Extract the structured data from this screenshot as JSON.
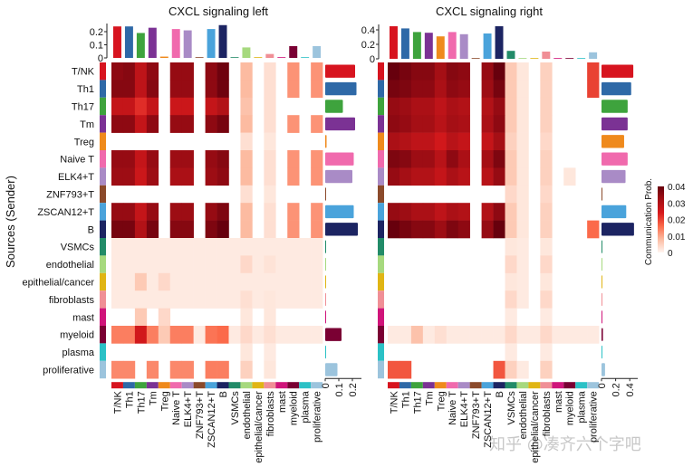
{
  "chart_data": [
    {
      "type": "heatmap",
      "title": "CXCL signaling  left",
      "ylabel": "Sources (Sender)",
      "rows": [
        "T/NK",
        "Th1",
        "Th17",
        "Tm",
        "Treg",
        "Naive T",
        "ELK4+T",
        "ZNF793+T",
        "ZSCAN12+T",
        "B",
        "VSMCs",
        "endothelial",
        "epithelial/cancer",
        "fibroblasts",
        "mast",
        "myeloid",
        "plasma",
        "proliferative"
      ],
      "columns": [
        "T/NK",
        "Th1",
        "Th17",
        "Tm",
        "Treg",
        "Naive T",
        "ELK4+T",
        "ZNF793+T",
        "ZSCAN12+T",
        "B",
        "VSMCs",
        "endothelial",
        "epithelial/cancer",
        "fibroblasts",
        "mast",
        "myeloid",
        "plasma",
        "proliferative"
      ],
      "matrix": [
        [
          0.035,
          0.036,
          0.028,
          0.035,
          0,
          0.034,
          0.034,
          0,
          0.035,
          0.039,
          0,
          0.008,
          0,
          0.003,
          0,
          0.012,
          0,
          0.012
        ],
        [
          0.036,
          0.036,
          0.028,
          0.036,
          0,
          0.034,
          0.034,
          0,
          0.035,
          0.039,
          0,
          0.008,
          0,
          0.003,
          0,
          0.012,
          0,
          0.012
        ],
        [
          0.027,
          0.027,
          0.022,
          0.027,
          0,
          0.026,
          0.026,
          0,
          0.027,
          0.03,
          0,
          0.007,
          0,
          0.003,
          0,
          0,
          0,
          0
        ],
        [
          0.035,
          0.035,
          0.027,
          0.035,
          0,
          0.034,
          0.034,
          0,
          0.035,
          0.038,
          0,
          0.008,
          0,
          0.003,
          0,
          0.012,
          0,
          0.012
        ],
        [
          0,
          0,
          0,
          0,
          0,
          0,
          0,
          0,
          0,
          0,
          0,
          0.003,
          0,
          0.002,
          0,
          0,
          0,
          0
        ],
        [
          0.034,
          0.034,
          0.027,
          0.034,
          0,
          0.033,
          0.033,
          0,
          0.034,
          0.036,
          0,
          0.008,
          0,
          0.003,
          0,
          0.012,
          0,
          0.012
        ],
        [
          0.033,
          0.033,
          0.026,
          0.033,
          0,
          0.031,
          0.031,
          0,
          0.033,
          0.035,
          0,
          0.008,
          0,
          0.003,
          0,
          0.012,
          0,
          0.012
        ],
        [
          0,
          0,
          0,
          0,
          0,
          0,
          0,
          0,
          0,
          0,
          0,
          0.003,
          0,
          0.002,
          0,
          0,
          0,
          0
        ],
        [
          0.034,
          0.034,
          0.027,
          0.034,
          0,
          0.033,
          0.033,
          0,
          0.034,
          0.037,
          0,
          0.008,
          0,
          0.003,
          0,
          0.012,
          0,
          0.012
        ],
        [
          0.038,
          0.038,
          0.03,
          0.038,
          0,
          0.036,
          0.036,
          0,
          0.037,
          0.04,
          0,
          0.008,
          0,
          0.003,
          0,
          0.012,
          0,
          0.012
        ],
        [
          0.0015,
          0.0015,
          0.0015,
          0.0015,
          0.0015,
          0.0015,
          0.0015,
          0.0015,
          0.0015,
          0.0015,
          0.0015,
          0.0015,
          0.0015,
          0.0015,
          0.0015,
          0.0015,
          0.0015,
          0.0015
        ],
        [
          0.0015,
          0.0015,
          0.0015,
          0.0015,
          0.0015,
          0.0015,
          0.0015,
          0.0015,
          0.0015,
          0.0015,
          0.0015,
          0.004,
          0.0015,
          0.0025,
          0.0015,
          0.0015,
          0.0015,
          0.0015
        ],
        [
          0.0015,
          0.0015,
          0.006,
          0.0015,
          0.004,
          0.0015,
          0.0015,
          0.0015,
          0.0015,
          0.0015,
          0.0015,
          0.0015,
          0.0015,
          0.0015,
          0.0015,
          0.0015,
          0.0015,
          0.0015
        ],
        [
          0.0015,
          0.0015,
          0.0015,
          0.0015,
          0.0015,
          0.0015,
          0.0015,
          0.0015,
          0.0015,
          0.0015,
          0.0015,
          0.003,
          0.0015,
          0.002,
          0.0015,
          0.0015,
          0.0015,
          0.0015
        ],
        [
          0,
          0,
          0.006,
          0,
          0.004,
          0,
          0,
          0,
          0,
          0,
          0,
          0.002,
          0,
          0.002,
          0,
          0,
          0,
          0
        ],
        [
          0.014,
          0.014,
          0.025,
          0.014,
          0.006,
          0.014,
          0.014,
          0.0015,
          0.015,
          0.016,
          0.0015,
          0.004,
          0.0015,
          0.003,
          0.0015,
          0.0015,
          0.0015,
          0.0015
        ],
        [
          0,
          0,
          0,
          0,
          0,
          0,
          0,
          0,
          0,
          0,
          0,
          0.002,
          0,
          0.0015,
          0,
          0,
          0,
          0
        ],
        [
          0.013,
          0.013,
          0,
          0.013,
          0,
          0.013,
          0.013,
          0,
          0.014,
          0.014,
          0,
          0.005,
          0,
          0.002,
          0,
          0,
          0,
          0
        ]
      ],
      "incoming_totals": [
        0.24,
        0.24,
        0.19,
        0.23,
        0.01,
        0.22,
        0.21,
        0.004,
        0.22,
        0.25,
        0.004,
        0.08,
        0.004,
        0.03,
        0.004,
        0.09,
        0.004,
        0.09
      ],
      "incoming_axis_ticks": [
        "0",
        "0.1",
        "0.2"
      ],
      "incoming_axis_max": 0.25,
      "outgoing_totals": [
        0.22,
        0.23,
        0.13,
        0.22,
        0.01,
        0.21,
        0.2,
        0.005,
        0.21,
        0.24,
        0.005,
        0.005,
        0.005,
        0.005,
        0.005,
        0.12,
        0.005,
        0.09
      ],
      "outgoing_axis_ticks": [
        "0",
        "0.1",
        "0.2"
      ],
      "outgoing_axis_max": 0.25
    },
    {
      "type": "heatmap",
      "title": "CXCL signaling  right",
      "rows": [
        "T/NK",
        "Th1",
        "Th17",
        "Tm",
        "Treg",
        "Naive T",
        "ELK4+T",
        "ZNF793+T",
        "ZSCAN12+T",
        "B",
        "VSMCs",
        "endothelial",
        "epithelial/cancer",
        "fibroblasts",
        "mast",
        "myeloid",
        "plasma",
        "proliferative"
      ],
      "columns": [
        "T/NK",
        "Th1",
        "Th17",
        "Tm",
        "Treg",
        "Naive T",
        "ELK4+T",
        "ZNF793+T",
        "ZSCAN12+T",
        "B",
        "VSMCs",
        "endothelial",
        "epithelial/cancer",
        "fibroblasts",
        "mast",
        "myeloid",
        "plasma",
        "proliferative"
      ],
      "matrix": [
        [
          0.04,
          0.038,
          0.036,
          0.036,
          0.032,
          0.036,
          0.035,
          0,
          0.034,
          0.04,
          0.006,
          0.002,
          0,
          0.005,
          0,
          0,
          0,
          0.02
        ],
        [
          0.038,
          0.037,
          0.035,
          0.035,
          0.031,
          0.035,
          0.034,
          0,
          0.033,
          0.038,
          0.006,
          0.002,
          0,
          0.005,
          0,
          0,
          0,
          0.02
        ],
        [
          0.034,
          0.033,
          0.031,
          0.031,
          0.028,
          0.031,
          0.03,
          0,
          0.03,
          0.034,
          0.006,
          0.002,
          0,
          0.005,
          0,
          0,
          0,
          0
        ],
        [
          0.035,
          0.034,
          0.032,
          0.032,
          0.029,
          0.032,
          0.031,
          0,
          0.031,
          0.035,
          0.006,
          0.002,
          0,
          0.005,
          0,
          0,
          0,
          0
        ],
        [
          0.031,
          0.03,
          0.028,
          0.028,
          0.025,
          0.029,
          0.027,
          0,
          0.027,
          0.032,
          0.005,
          0.002,
          0,
          0.004,
          0,
          0,
          0,
          0
        ],
        [
          0.037,
          0.036,
          0.033,
          0.033,
          0.029,
          0.035,
          0.031,
          0,
          0.032,
          0.037,
          0.006,
          0.002,
          0,
          0.005,
          0,
          0,
          0,
          0
        ],
        [
          0.034,
          0.032,
          0.03,
          0.03,
          0.027,
          0.031,
          0.029,
          0,
          0.029,
          0.034,
          0.006,
          0.002,
          0,
          0.005,
          0,
          0.002,
          0,
          0
        ],
        [
          0,
          0,
          0,
          0,
          0,
          0,
          0,
          0,
          0,
          0,
          0.004,
          0.002,
          0,
          0.004,
          0,
          0,
          0,
          0
        ],
        [
          0.034,
          0.033,
          0.031,
          0.031,
          0.028,
          0.031,
          0.03,
          0,
          0.03,
          0.035,
          0.006,
          0.002,
          0,
          0.005,
          0,
          0,
          0,
          0
        ],
        [
          0.04,
          0.038,
          0.036,
          0.036,
          0.033,
          0.037,
          0.035,
          0,
          0.034,
          0.042,
          0.006,
          0.002,
          0,
          0.005,
          0,
          0,
          0,
          0.016
        ],
        [
          0,
          0,
          0,
          0,
          0,
          0,
          0,
          0,
          0,
          0,
          0.002,
          0.0015,
          0,
          0.002,
          0,
          0,
          0,
          0
        ],
        [
          0,
          0,
          0,
          0,
          0,
          0,
          0,
          0,
          0,
          0,
          0.004,
          0.0015,
          0,
          0.004,
          0,
          0,
          0,
          0
        ],
        [
          0,
          0,
          0,
          0,
          0,
          0,
          0,
          0,
          0,
          0,
          0.002,
          0.0015,
          0,
          0.002,
          0,
          0,
          0,
          0
        ],
        [
          0,
          0,
          0,
          0,
          0,
          0,
          0,
          0,
          0,
          0,
          0.004,
          0.0015,
          0,
          0.004,
          0,
          0,
          0,
          0
        ],
        [
          0,
          0,
          0,
          0,
          0,
          0,
          0,
          0,
          0,
          0,
          0.0015,
          0,
          0,
          0.0015,
          0,
          0,
          0,
          0
        ],
        [
          0.0015,
          0.0015,
          0.007,
          0.0015,
          0.003,
          0.0015,
          0.0015,
          0.0015,
          0.0015,
          0.0015,
          0.004,
          0.0015,
          0.0015,
          0.004,
          0.0015,
          0.0015,
          0.0015,
          0.0015
        ],
        [
          0,
          0,
          0,
          0,
          0,
          0,
          0,
          0,
          0,
          0,
          0.0015,
          0,
          0,
          0.0015,
          0,
          0,
          0,
          0
        ],
        [
          0.018,
          0.018,
          0,
          0,
          0,
          0,
          0,
          0,
          0,
          0.018,
          0.005,
          0.0015,
          0,
          0.005,
          0,
          0,
          0,
          0
        ]
      ],
      "incoming_totals": [
        0.45,
        0.42,
        0.37,
        0.36,
        0.31,
        0.37,
        0.34,
        0.006,
        0.35,
        0.45,
        0.11,
        0.01,
        0.006,
        0.1,
        0.01,
        0.01,
        0.006,
        0.09
      ],
      "incoming_axis_ticks": [
        "0",
        "0.2",
        "0.4"
      ],
      "incoming_axis_max": 0.45,
      "outgoing_totals": [
        0.45,
        0.42,
        0.37,
        0.37,
        0.32,
        0.37,
        0.34,
        0.01,
        0.35,
        0.46,
        0.005,
        0.005,
        0.005,
        0.005,
        0.005,
        0.02,
        0.005,
        0.05
      ],
      "outgoing_axis_ticks": [
        "0",
        "0.2",
        "0.4"
      ],
      "outgoing_axis_max": 0.45
    }
  ],
  "group_colors": [
    "#d7141f",
    "#2e69a7",
    "#3ea33d",
    "#7b3294",
    "#ef8a1c",
    "#f06aad",
    "#a98bc6",
    "#8b4a2b",
    "#4aa3db",
    "#1c2462",
    "#228b68",
    "#a6d97e",
    "#e0b514",
    "#f08f96",
    "#d0147a",
    "#7a0033",
    "#2bc1c6",
    "#9cc4dd"
  ],
  "legend": {
    "title": "Communication Prob.",
    "ticks": [
      "0.04",
      "0.03",
      "0.02",
      "0.01",
      "0"
    ],
    "range": [
      0,
      0.04
    ],
    "colors": [
      "#fff5f0",
      "#fcbba1",
      "#fb6a4a",
      "#d7191c",
      "#a50f15",
      "#67000d"
    ]
  },
  "watermark": "知乎 @凑齐六个字吧"
}
